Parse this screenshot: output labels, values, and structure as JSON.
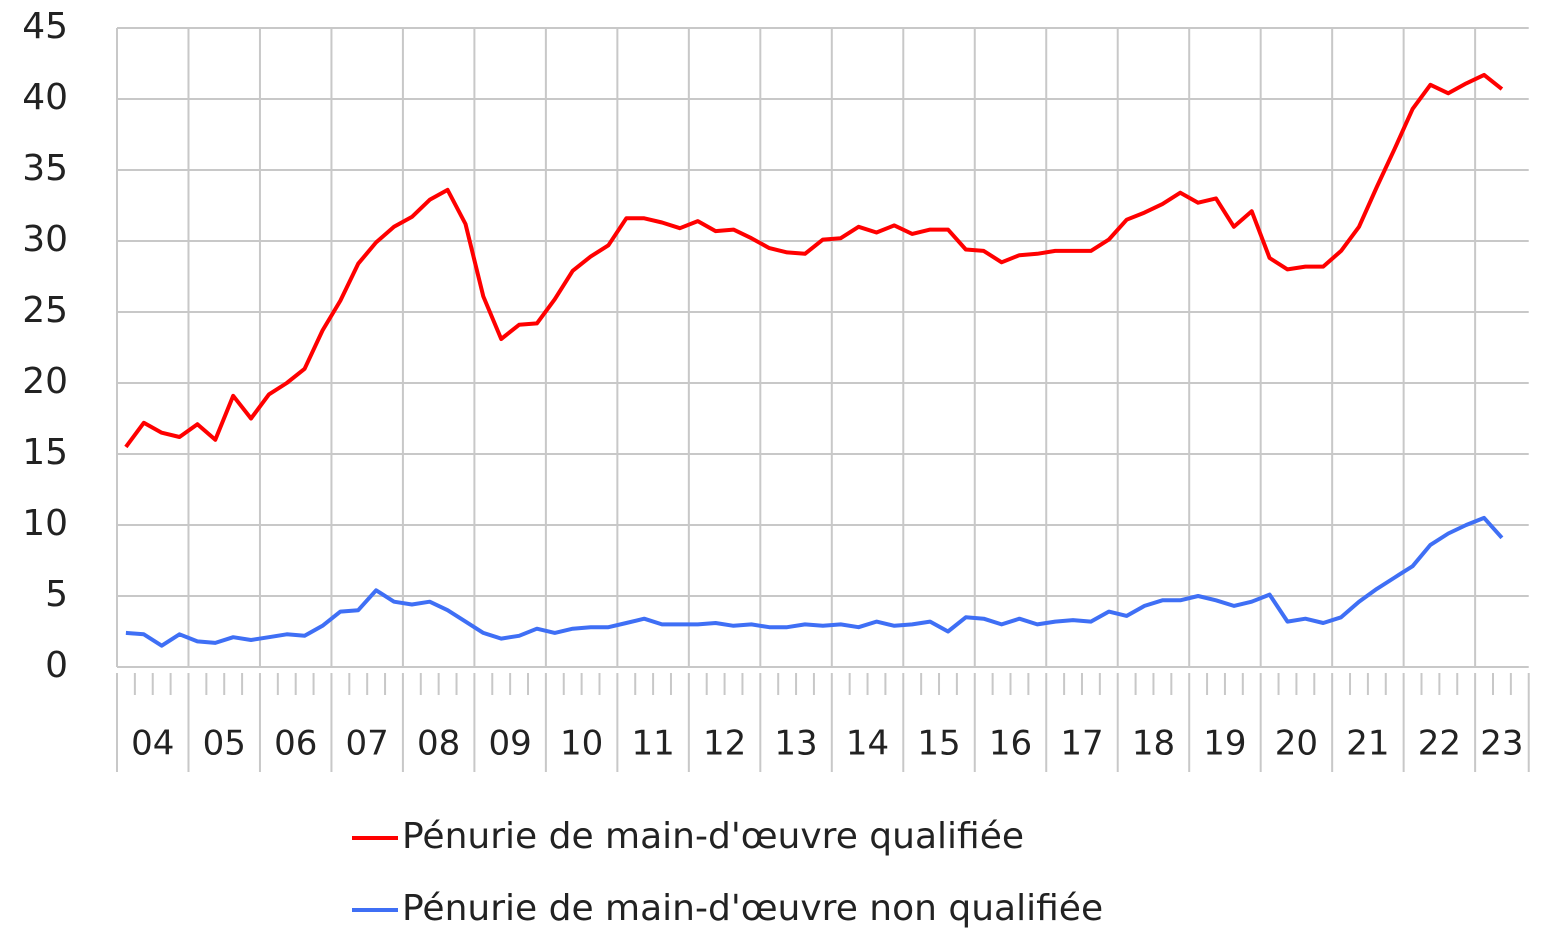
{
  "chart_data": {
    "type": "line",
    "categories": [
      "04",
      null,
      null,
      null,
      "05",
      null,
      null,
      null,
      "06",
      null,
      null,
      null,
      "07",
      null,
      null,
      null,
      "08",
      null,
      null,
      null,
      "09",
      null,
      null,
      null,
      "10",
      null,
      null,
      null,
      "11",
      null,
      null,
      null,
      "12",
      null,
      null,
      null,
      "13",
      null,
      null,
      null,
      "14",
      null,
      null,
      null,
      "15",
      null,
      null,
      null,
      "16",
      null,
      null,
      null,
      "17",
      null,
      null,
      null,
      "18",
      null,
      null,
      null,
      "19",
      null,
      null,
      null,
      "20",
      null,
      null,
      null,
      "21",
      null,
      null,
      null,
      "22",
      null,
      null,
      null,
      "23",
      null,
      null
    ],
    "series": [
      {
        "name": "Pénurie de main-d'œuvre qualifiée",
        "color": "#ff0000",
        "values": [
          15.5,
          17.2,
          16.5,
          16.2,
          17.1,
          16.0,
          19.1,
          17.5,
          19.2,
          20.0,
          21.0,
          23.7,
          25.8,
          28.4,
          29.9,
          31.0,
          31.7,
          32.9,
          33.6,
          31.2,
          26.1,
          23.1,
          24.1,
          24.2,
          25.9,
          27.9,
          28.9,
          29.7,
          31.6,
          31.6,
          31.3,
          30.9,
          31.4,
          30.7,
          30.8,
          30.2,
          29.5,
          29.2,
          29.1,
          30.1,
          30.2,
          31.0,
          30.6,
          31.1,
          30.5,
          30.8,
          30.8,
          29.4,
          29.3,
          28.5,
          29.0,
          29.1,
          29.3,
          29.3,
          29.3,
          30.1,
          31.5,
          32.0,
          32.6,
          33.4,
          32.7,
          33.0,
          31.0,
          32.1,
          28.8,
          28.0,
          28.2,
          28.2,
          29.3,
          31.0,
          33.8,
          36.5,
          39.3,
          41.0,
          40.4,
          41.1,
          41.7,
          40.7,
          null
        ]
      },
      {
        "name": "Pénurie de main-d'œuvre non qualifiée",
        "color": "#3f6ff5",
        "values": [
          2.4,
          2.3,
          1.5,
          2.3,
          1.8,
          1.7,
          2.1,
          1.9,
          2.1,
          2.3,
          2.2,
          2.9,
          3.9,
          4.0,
          5.4,
          4.6,
          4.4,
          4.6,
          4.0,
          3.2,
          2.4,
          2.0,
          2.2,
          2.7,
          2.4,
          2.7,
          2.8,
          2.8,
          3.1,
          3.4,
          3.0,
          3.0,
          3.0,
          3.1,
          2.9,
          3.0,
          2.8,
          2.8,
          3.0,
          2.9,
          3.0,
          2.8,
          3.2,
          2.9,
          3.0,
          3.2,
          2.5,
          3.5,
          3.4,
          3.0,
          3.4,
          3.0,
          3.2,
          3.3,
          3.2,
          3.9,
          3.6,
          4.3,
          4.7,
          4.7,
          5.0,
          4.7,
          4.3,
          4.6,
          5.1,
          3.2,
          3.4,
          3.1,
          3.5,
          4.6,
          5.5,
          6.3,
          7.1,
          8.6,
          9.4,
          10.0,
          10.5,
          9.1,
          null
        ]
      }
    ],
    "ylim": [
      0,
      45
    ],
    "yticks": [
      0,
      5,
      10,
      15,
      20,
      25,
      30,
      35,
      40,
      45
    ],
    "grid": true,
    "legend": "bottom"
  }
}
